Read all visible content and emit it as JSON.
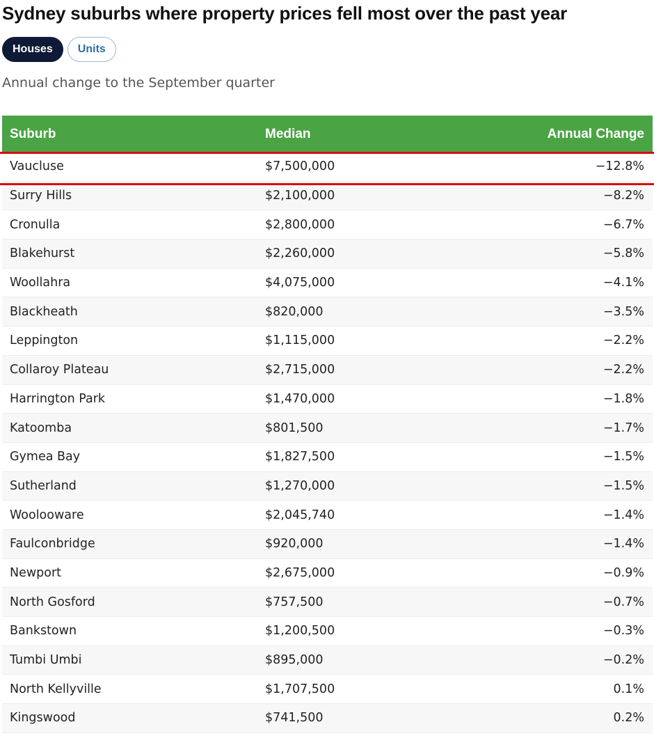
{
  "title": "Sydney suburbs where property prices fell most over the past year",
  "toggles": {
    "houses": "Houses",
    "units": "Units",
    "selected": "Houses"
  },
  "subtitle": "Annual change to the September quarter",
  "colors": {
    "header_bg": "#4aa444",
    "active_pill": "#0e1a36",
    "inactive_pill_text": "#2a6fa8",
    "highlight": "#d11010"
  },
  "table": {
    "headers": {
      "suburb": "Suburb",
      "median": "Median",
      "change": "Annual Change"
    },
    "rows": [
      {
        "suburb": "Vaucluse",
        "median": "$7,500,000",
        "change": "−12.8%"
      },
      {
        "suburb": "Surry Hills",
        "median": "$2,100,000",
        "change": "−8.2%"
      },
      {
        "suburb": "Cronulla",
        "median": "$2,800,000",
        "change": "−6.7%"
      },
      {
        "suburb": "Blakehurst",
        "median": "$2,260,000",
        "change": "−5.8%"
      },
      {
        "suburb": "Woollahra",
        "median": "$4,075,000",
        "change": "−4.1%"
      },
      {
        "suburb": "Blackheath",
        "median": "$820,000",
        "change": "−3.5%"
      },
      {
        "suburb": "Leppington",
        "median": "$1,115,000",
        "change": "−2.2%"
      },
      {
        "suburb": "Collaroy Plateau",
        "median": "$2,715,000",
        "change": "−2.2%"
      },
      {
        "suburb": "Harrington Park",
        "median": "$1,470,000",
        "change": "−1.8%"
      },
      {
        "suburb": "Katoomba",
        "median": "$801,500",
        "change": "−1.7%"
      },
      {
        "suburb": "Gymea Bay",
        "median": "$1,827,500",
        "change": "−1.5%"
      },
      {
        "suburb": "Sutherland",
        "median": "$1,270,000",
        "change": "−1.5%"
      },
      {
        "suburb": "Woolooware",
        "median": "$2,045,740",
        "change": "−1.4%"
      },
      {
        "suburb": "Faulconbridge",
        "median": "$920,000",
        "change": "−1.4%"
      },
      {
        "suburb": "Newport",
        "median": "$2,675,000",
        "change": "−0.9%"
      },
      {
        "suburb": "North Gosford",
        "median": "$757,500",
        "change": "−0.7%"
      },
      {
        "suburb": "Bankstown",
        "median": "$1,200,500",
        "change": "−0.3%"
      },
      {
        "suburb": "Tumbi Umbi",
        "median": "$895,000",
        "change": "−0.2%"
      },
      {
        "suburb": "North Kellyville",
        "median": "$1,707,500",
        "change": "0.1%"
      },
      {
        "suburb": "Kingswood",
        "median": "$741,500",
        "change": "0.2%"
      }
    ]
  }
}
